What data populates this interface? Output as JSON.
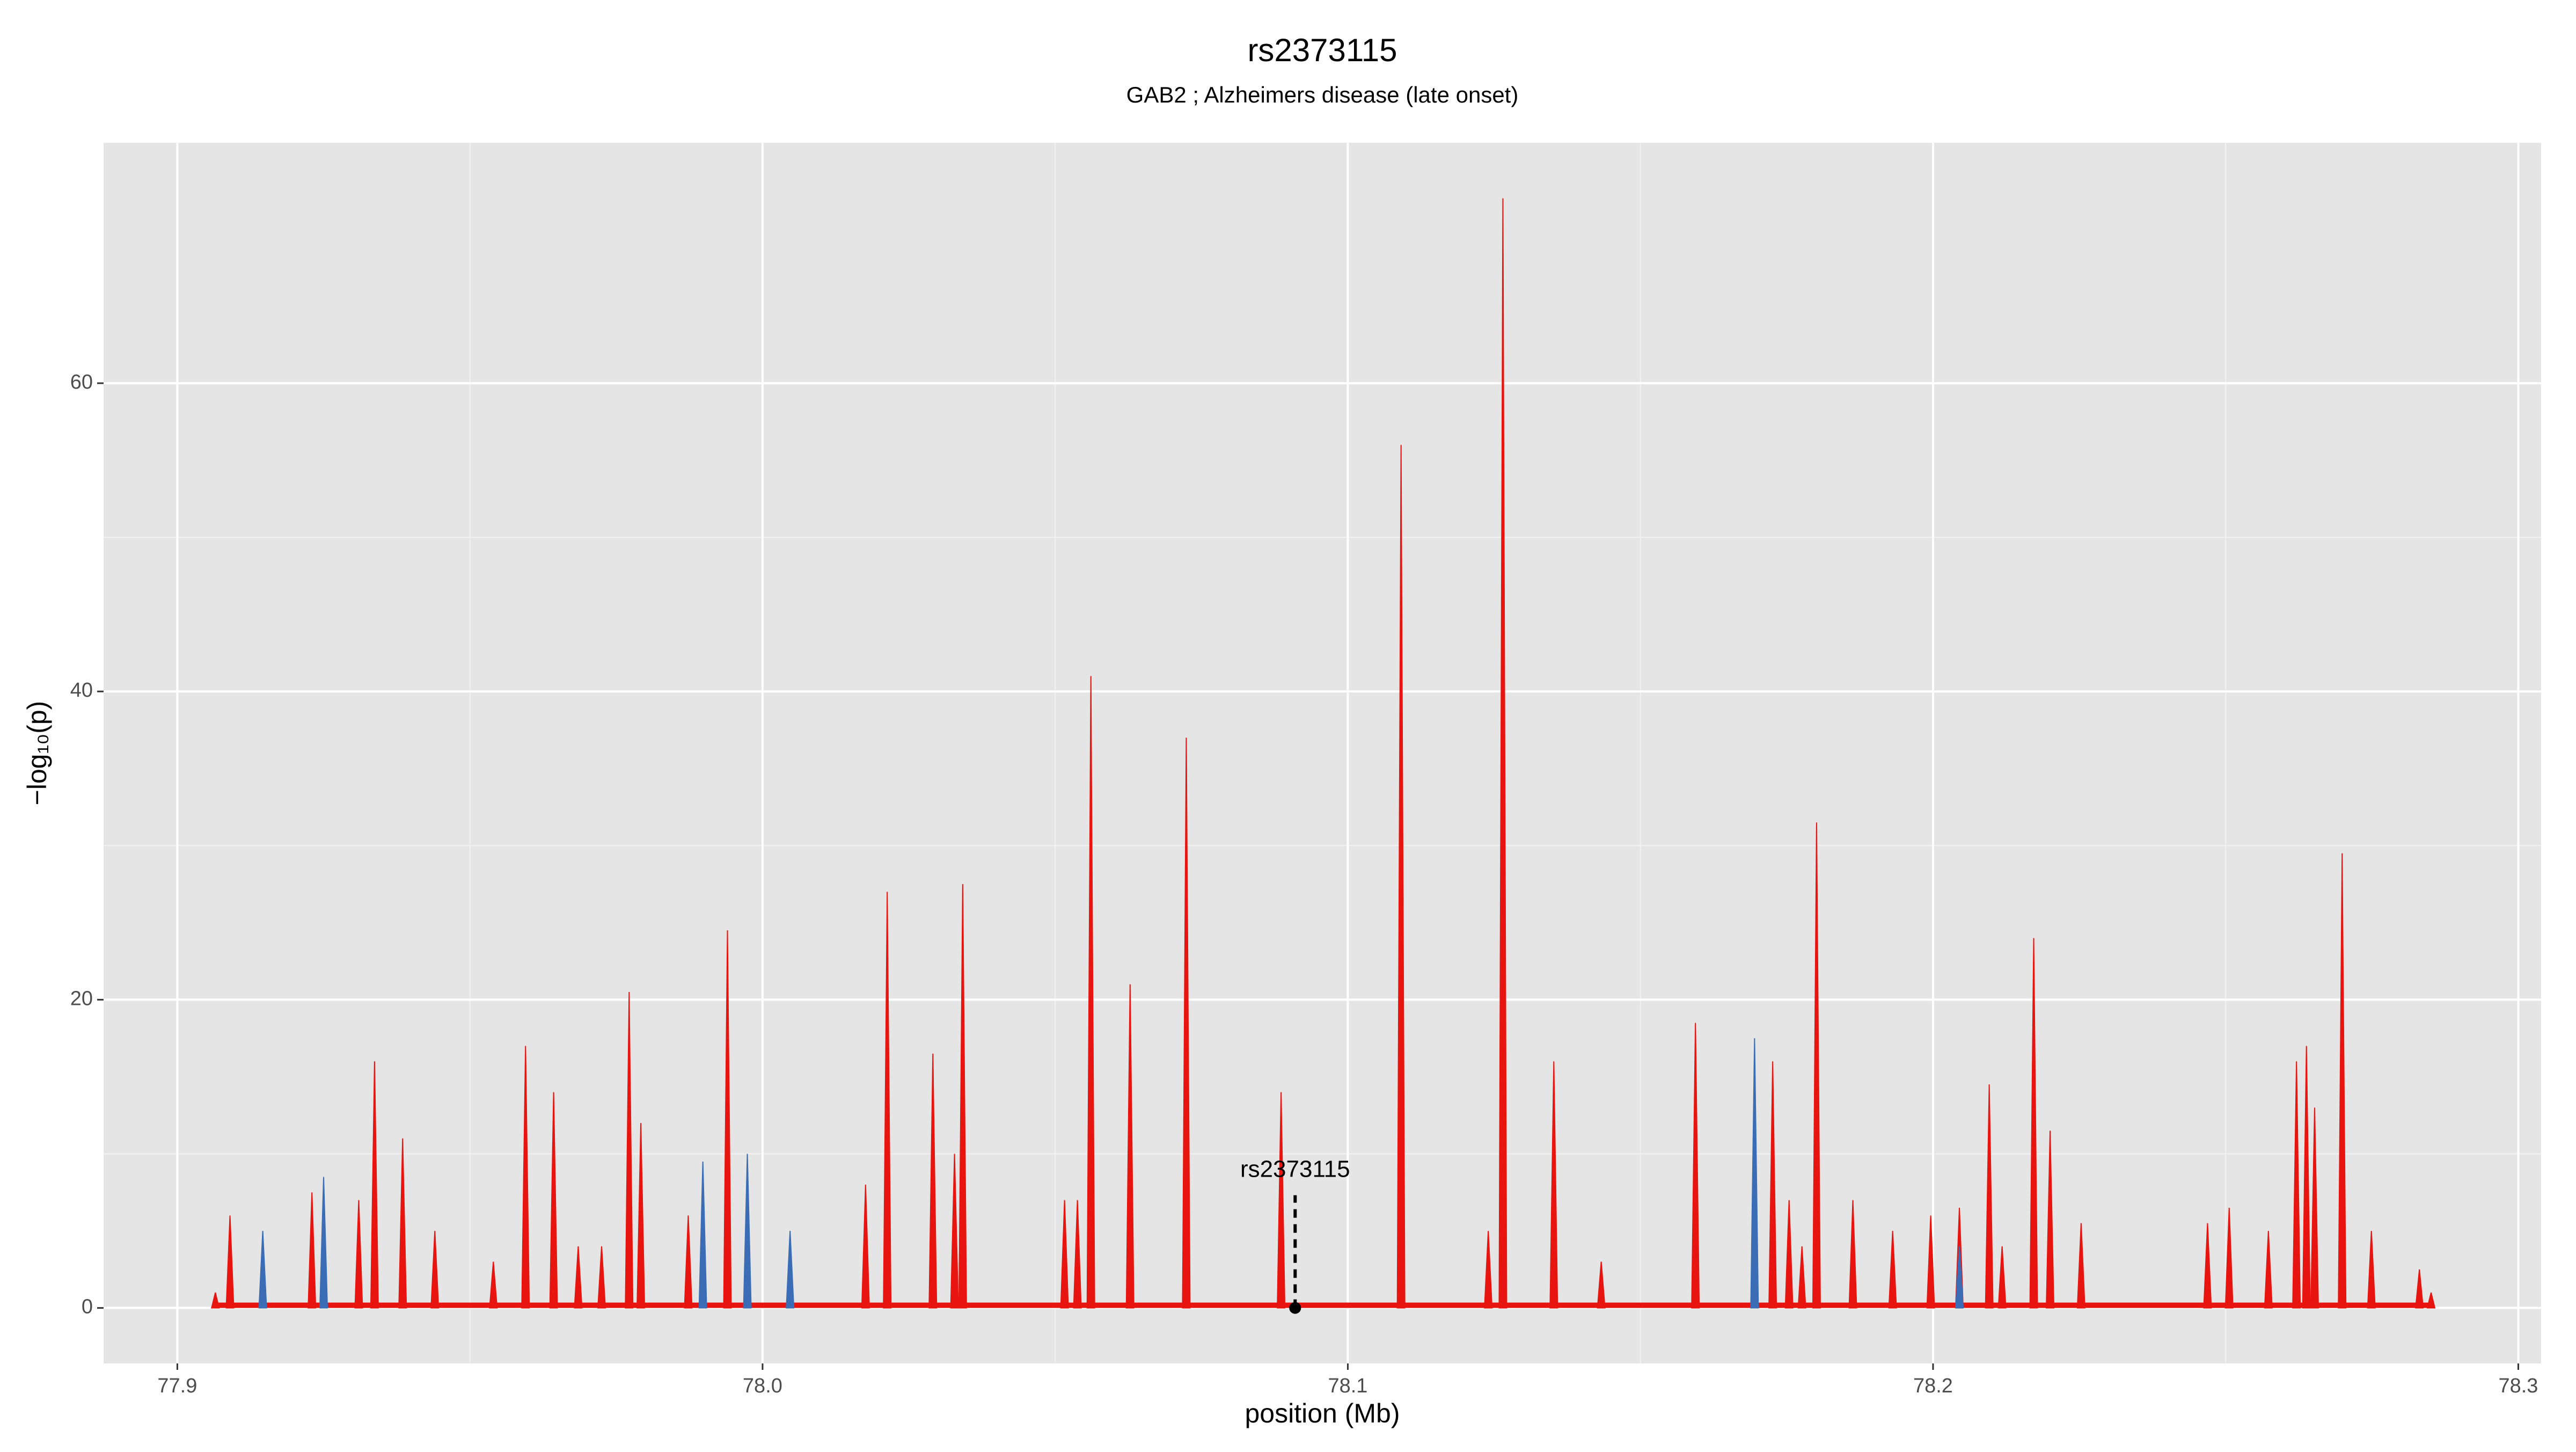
{
  "chart_data": {
    "type": "spike",
    "title": "rs2373115",
    "subtitle": "GAB2 ; Alzheimers disease (late onset)",
    "x_label": "position (Mb)",
    "y_label": "−log₁₀(p)",
    "xlim": [
      77.8874,
      78.3039
    ],
    "ylim": [
      -3.6,
      75.6
    ],
    "xticks": [
      77.9,
      {
        "value": 78,
        "label": "78.0"
      },
      78.1,
      78.2,
      78.3
    ],
    "yticks": [
      0,
      20,
      40,
      60
    ],
    "grid": true,
    "series": [
      {
        "color": "#e8140f",
        "x": [
          77.9065,
          77.909,
          77.923,
          77.931,
          77.9337,
          77.9385,
          77.944,
          77.954,
          77.9595,
          77.9643,
          77.9685,
          77.9725,
          77.9772,
          77.9792,
          77.9873,
          77.994,
          78.0176,
          78.0213,
          78.0291,
          78.0328,
          78.0342,
          78.0516,
          78.0538,
          78.0561,
          78.0628,
          78.0724,
          78.0886,
          78.1091,
          78.124,
          78.1265,
          78.1352,
          78.1433,
          78.1594,
          78.1726,
          78.1754,
          78.1776,
          78.1801,
          78.1863,
          78.1931,
          78.1996,
          78.2045,
          78.2096,
          78.2118,
          78.2172,
          78.22,
          78.2253,
          78.2469,
          78.2506,
          78.2573,
          78.2621,
          78.2638,
          78.2652,
          78.2699,
          78.2749,
          78.2831,
          78.2851
        ],
        "values": [
          1,
          6,
          7.5,
          7,
          16,
          11,
          5,
          3,
          17,
          14,
          4,
          4,
          20.5,
          12,
          6,
          24.5,
          8,
          27,
          16.5,
          10,
          27.5,
          7,
          7,
          41,
          21,
          37,
          14,
          56,
          5,
          72,
          16,
          3,
          18.5,
          16,
          7,
          4,
          31.5,
          7,
          5,
          6,
          6.5,
          14.5,
          4,
          24,
          11.5,
          5.5,
          5.5,
          6.5,
          5,
          16,
          17,
          13,
          29.5,
          5,
          2.5,
          1
        ]
      },
      {
        "color": "#3a6db5",
        "x": [
          77.9146,
          77.925,
          77.9898,
          77.9974,
          78.0047,
          78.1695,
          78.2045
        ],
        "values": [
          5,
          8.5,
          9.5,
          10,
          5,
          17.5,
          4
        ]
      }
    ],
    "annotation": {
      "text": "rs2373115",
      "x": 78.091,
      "y": 0
    }
  }
}
